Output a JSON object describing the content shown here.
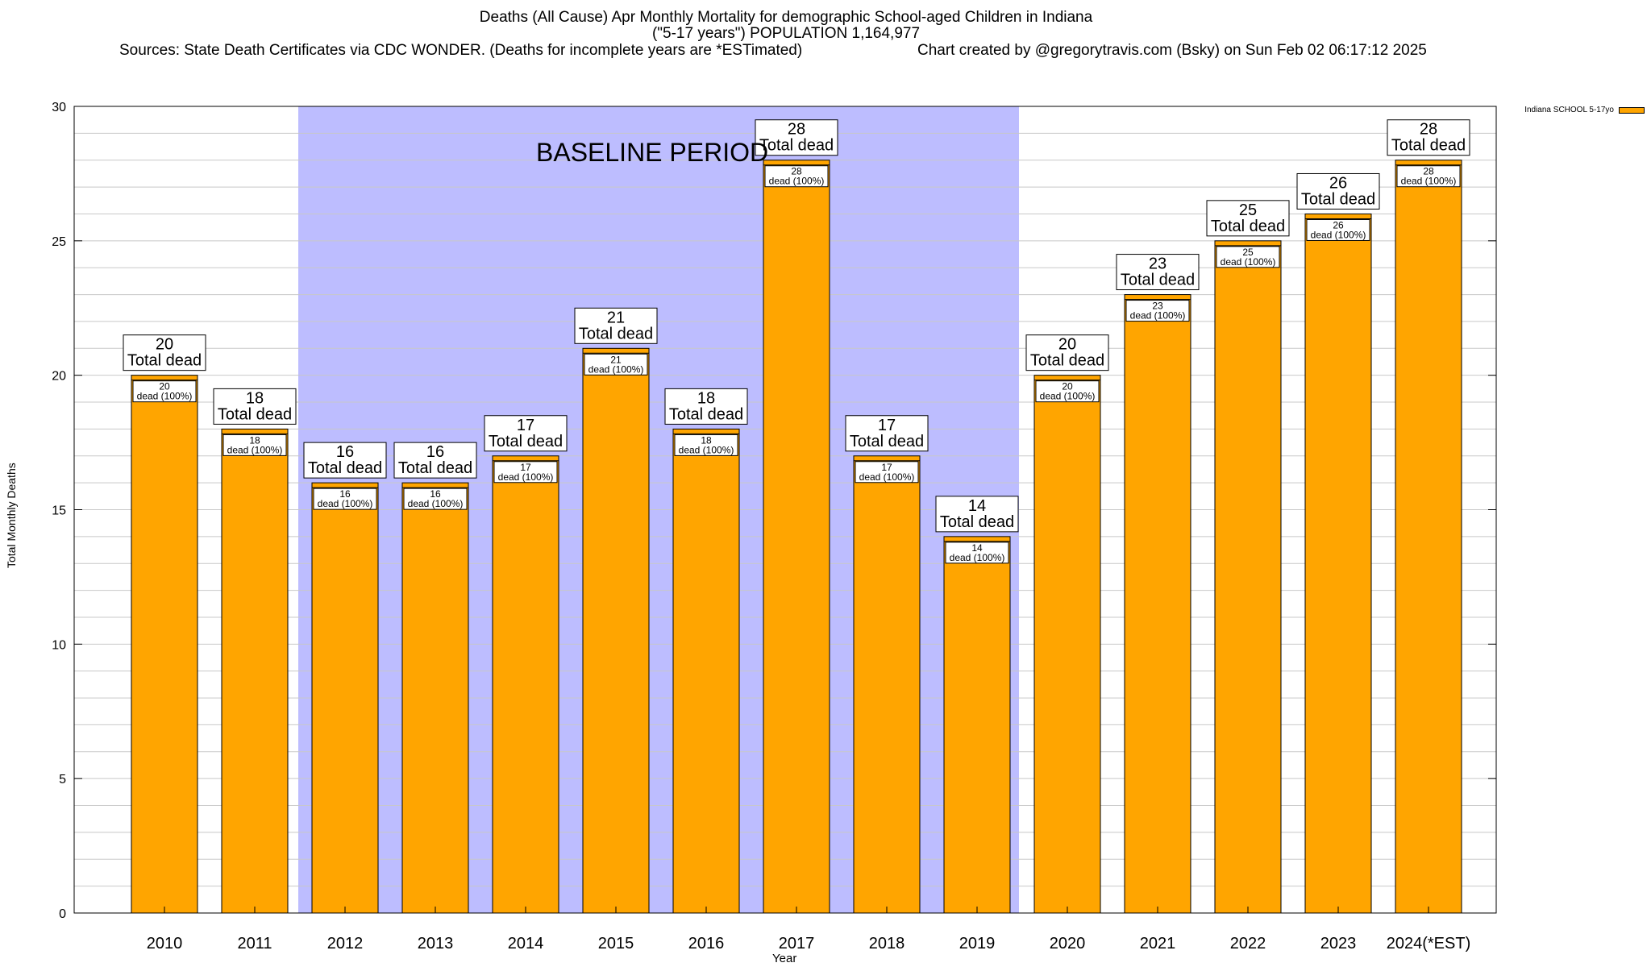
{
  "header": {
    "title_line1": "Deaths (All Cause) Apr Monthly Mortality for demographic School-aged Children in Indiana",
    "title_line2": "(\"5-17 years\") POPULATION 1,164,977",
    "sources": "Sources: State Death Certificates via CDC WONDER. (Deaths for incomplete years are *ESTimated)",
    "credit": "Chart created by @gregorytravis.com (Bsky) on Sun Feb 02 06:17:12 2025"
  },
  "legend": {
    "label": "Indiana SCHOOL 5-17yo"
  },
  "axes": {
    "ylabel": "Total Monthly Deaths",
    "xlabel": "Year"
  },
  "baseline": {
    "label": "BASELINE PERIOD",
    "from": "2012",
    "to": "2019"
  },
  "colors": {
    "bar": "#FFA500",
    "baseline_band": "#BDBDFF",
    "grid": "#C8C8C8"
  },
  "chart_data": {
    "type": "bar",
    "title": "Deaths (All Cause) Apr Monthly Mortality for demographic School-aged Children in Indiana",
    "xlabel": "Year",
    "ylabel": "Total Monthly Deaths",
    "ylim": [
      0,
      30
    ],
    "yticks": [
      0,
      5,
      10,
      15,
      20,
      25,
      30
    ],
    "grid": true,
    "legend_position": "top-right",
    "categories": [
      "2010",
      "2011",
      "2012",
      "2013",
      "2014",
      "2015",
      "2016",
      "2017",
      "2018",
      "2019",
      "2020",
      "2021",
      "2022",
      "2023",
      "2024(*EST)"
    ],
    "series": [
      {
        "name": "Indiana SCHOOL 5-17yo",
        "values": [
          20,
          18,
          16,
          16,
          17,
          21,
          18,
          28,
          17,
          14,
          20,
          23,
          25,
          26,
          28
        ]
      }
    ],
    "annotations": {
      "total_label": "Total dead",
      "inner_label": "dead (100%)"
    }
  }
}
